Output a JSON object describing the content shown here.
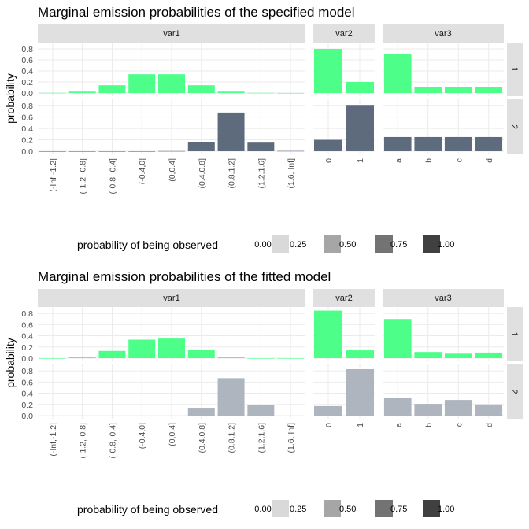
{
  "chart_data": [
    {
      "type": "bar",
      "title": "Marginal emission probabilities of the specified model",
      "ylabel": "probability",
      "ylim": [
        0,
        0.9
      ],
      "yticks": [
        "0.0",
        "0.2",
        "0.4",
        "0.6",
        "0.8"
      ],
      "grid": true,
      "row_facets": [
        "1",
        "2"
      ],
      "series_colors": {
        "1": "#4dff88",
        "2": "#5d6b7c"
      },
      "panels": [
        {
          "column": "var1",
          "categories": [
            "(-Inf,-1.2]",
            "(-1.2,-0.8]",
            "(-0.8,-0.4]",
            "(-0.4,0]",
            "(0,0.4]",
            "(0.4,0.8]",
            "(0.8,1.2]",
            "(1.2,1.6]",
            "(1.6, Inf]"
          ],
          "rows": [
            {
              "state": "1",
              "values": [
                0.003,
                0.025,
                0.14,
                0.34,
                0.34,
                0.14,
                0.025,
                0.003,
                0.001
              ],
              "observed": [
                1,
                1,
                1,
                1,
                1,
                1,
                1,
                1,
                1
              ]
            },
            {
              "state": "2",
              "values": [
                0.0,
                0.0,
                0.0,
                0.0,
                0.003,
                0.16,
                0.68,
                0.15,
                0.005
              ],
              "observed": [
                1,
                1,
                1,
                1,
                1,
                1,
                1,
                1,
                1
              ]
            }
          ]
        },
        {
          "column": "var2",
          "categories": [
            "0",
            "1"
          ],
          "rows": [
            {
              "state": "1",
              "values": [
                0.8,
                0.2
              ],
              "observed": [
                1,
                1
              ]
            },
            {
              "state": "2",
              "values": [
                0.2,
                0.8
              ],
              "observed": [
                1,
                1
              ]
            }
          ]
        },
        {
          "column": "var3",
          "categories": [
            "a",
            "b",
            "c",
            "d"
          ],
          "rows": [
            {
              "state": "1",
              "values": [
                0.7,
                0.1,
                0.1,
                0.1
              ],
              "observed": [
                1,
                1,
                1,
                1
              ]
            },
            {
              "state": "2",
              "values": [
                0.25,
                0.25,
                0.25,
                0.25
              ],
              "observed": [
                1,
                1,
                1,
                1
              ]
            }
          ]
        }
      ],
      "legend": {
        "title": "probability of being observed",
        "position": "bottom",
        "values": [
          "0.00",
          "0.25",
          "0.50",
          "0.75",
          "1.00"
        ],
        "colors": [
          "#ffffff",
          "#d9d9d9",
          "#a6a6a6",
          "#737373",
          "#404040"
        ]
      }
    },
    {
      "type": "bar",
      "title": "Marginal emission probabilities of the fitted model",
      "ylabel": "probability",
      "ylim": [
        0,
        0.9
      ],
      "yticks": [
        "0.0",
        "0.2",
        "0.4",
        "0.6",
        "0.8"
      ],
      "grid": true,
      "row_facets": [
        "1",
        "2"
      ],
      "series_colors": {
        "1": "#4dff88",
        "2": "#5d6b7c"
      },
      "panels": [
        {
          "column": "var1",
          "categories": [
            "(-Inf,-1.2]",
            "(-1.2,-0.8]",
            "(-0.8,-0.4]",
            "(-0.4,0]",
            "(0,0.4]",
            "(0.4,0.8]",
            "(0.8,1.2]",
            "(1.2,1.6]",
            "(1.6, Inf]"
          ],
          "rows": [
            {
              "state": "1",
              "values": [
                0.0,
                0.02,
                0.13,
                0.33,
                0.35,
                0.15,
                0.02,
                0.0,
                0.0
              ],
              "observed": [
                1,
                1,
                1,
                1,
                1,
                1,
                1,
                1,
                1
              ]
            },
            {
              "state": "2",
              "values": [
                0.0,
                0.0,
                0.0,
                0.0,
                0.0,
                0.14,
                0.67,
                0.19,
                0.0
              ],
              "observed": [
                0.5,
                0.5,
                0.5,
                0.5,
                0.5,
                0.5,
                0.5,
                0.5,
                0.5
              ]
            }
          ]
        },
        {
          "column": "var2",
          "categories": [
            "0",
            "1"
          ],
          "rows": [
            {
              "state": "1",
              "values": [
                0.85,
                0.14
              ],
              "observed": [
                1,
                1
              ]
            },
            {
              "state": "2",
              "values": [
                0.17,
                0.83
              ],
              "observed": [
                0.5,
                0.5
              ]
            }
          ]
        },
        {
          "column": "var3",
          "categories": [
            "a",
            "b",
            "c",
            "d"
          ],
          "rows": [
            {
              "state": "1",
              "values": [
                0.7,
                0.11,
                0.08,
                0.1
              ],
              "observed": [
                1,
                1,
                1,
                1
              ]
            },
            {
              "state": "2",
              "values": [
                0.31,
                0.21,
                0.28,
                0.2
              ],
              "observed": [
                0.5,
                0.5,
                0.5,
                0.5
              ]
            }
          ]
        }
      ],
      "legend": {
        "title": "probability of being observed",
        "position": "bottom",
        "values": [
          "0.00",
          "0.25",
          "0.50",
          "0.75",
          "1.00"
        ],
        "colors": [
          "#ffffff",
          "#d9d9d9",
          "#a6a6a6",
          "#737373",
          "#404040"
        ]
      }
    }
  ]
}
